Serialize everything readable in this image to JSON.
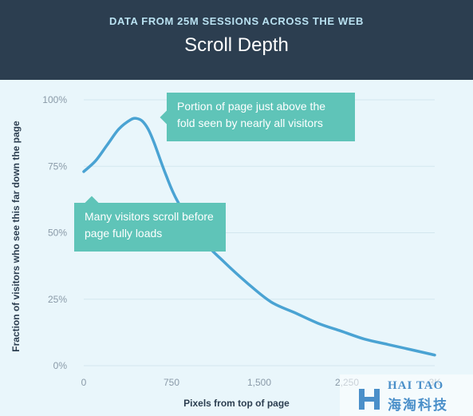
{
  "header": {
    "kicker": "DATA FROM 25M SESSIONS ACROSS THE WEB",
    "title": "Scroll Depth"
  },
  "colors": {
    "header_bg": "#2c3e50",
    "kicker": "#b9e1f1",
    "plot_bg": "#e9f6fb",
    "line": "#4aa3d3",
    "callout": "#5fc4b8"
  },
  "annotations": {
    "fold": "Portion of page just above the fold seen by nearly all visitors",
    "scroll": "Many visitors scroll before page fully loads"
  },
  "watermark": {
    "latin": "HAI TAO",
    "chinese": "海淘科技"
  },
  "chart_data": {
    "type": "line",
    "title": "Scroll Depth",
    "subtitle": "DATA FROM 25M SESSIONS ACROSS THE WEB",
    "xlabel": "Pixels from top of page",
    "ylabel": "Fraction of visitors who see this far down the page",
    "xlim": [
      0,
      3000
    ],
    "ylim": [
      0,
      100
    ],
    "x_ticks": [
      0,
      750,
      1500,
      2250,
      3000
    ],
    "x_tick_labels": [
      "0",
      "750",
      "1,500",
      "2,250",
      "3K"
    ],
    "y_ticks": [
      0,
      25,
      50,
      75,
      100
    ],
    "y_tick_labels": [
      "0%",
      "25%",
      "50%",
      "75%",
      "100%"
    ],
    "grid": "horizontal",
    "series": [
      {
        "x": [
          0,
          100,
          200,
          300,
          400,
          450,
          500,
          550,
          600,
          700,
          800,
          1000,
          1200,
          1400,
          1600,
          1800,
          2000,
          2200,
          2400,
          2600,
          2800,
          2950,
          3000
        ],
        "y": [
          73,
          77,
          83,
          89,
          92.5,
          93,
          92,
          89,
          84,
          72,
          62,
          48,
          39,
          31,
          24,
          20,
          16,
          13,
          10,
          8,
          6,
          4.5,
          4
        ]
      }
    ]
  }
}
